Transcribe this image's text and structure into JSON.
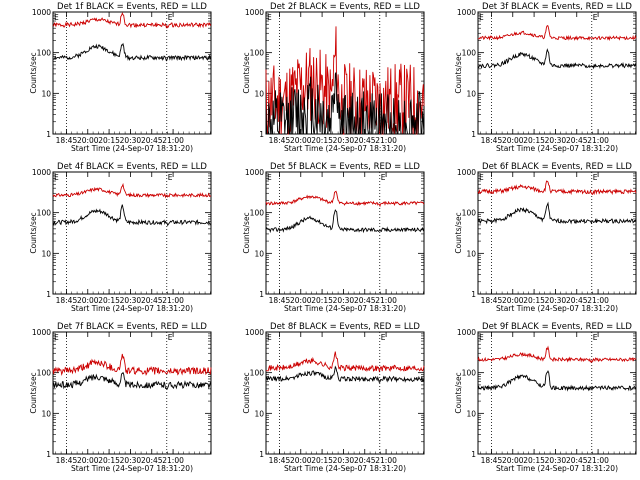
{
  "chart_data": [
    {
      "type": "line",
      "title": "Det 1f BLACK = Events, RED = LLD",
      "ylabel": "Counts/sec",
      "xlabel": "Start Time (24-Sep-07 18:31:20)",
      "ylim": [
        1,
        1000
      ],
      "y_scale": "log",
      "x_ticks": [
        "18:45",
        "20:00",
        "20:15",
        "20:30",
        "20:45",
        "21:00"
      ],
      "y_ticks": [
        "1",
        "10",
        "100",
        "1000"
      ],
      "markers": {
        "E_left": "E",
        "E_right": "E"
      },
      "series": [
        {
          "color": "#cc0000",
          "base": 480,
          "bump": 1.35,
          "spike": 2.0,
          "noise": 0.05
        },
        {
          "color": "#000000",
          "base": 75,
          "bump": 1.9,
          "spike": 2.1,
          "noise": 0.05
        }
      ]
    },
    {
      "type": "line",
      "title": "Det 2f BLACK = Events, RED = LLD",
      "ylabel": "Counts/sec",
      "xlabel": "Start Time (24-Sep-07 18:31:20)",
      "ylim": [
        1,
        1000
      ],
      "y_scale": "log",
      "x_ticks": [
        "18:45",
        "20:00",
        "20:15",
        "20:30",
        "20:45",
        "21:00"
      ],
      "y_ticks": [
        "1",
        "10",
        "100",
        "1000"
      ],
      "markers": {
        "E_left": "E",
        "E_right": ""
      },
      "series": [
        {
          "color": "#cc0000",
          "base": 6,
          "bump": 3.0,
          "spike": 10.0,
          "noise": 1.0
        },
        {
          "color": "#000000",
          "base": 1.5,
          "bump": 3.0,
          "spike": 20.0,
          "noise": 0.9
        }
      ]
    },
    {
      "type": "line",
      "title": "Det 3f BLACK = Events, RED = LLD",
      "ylabel": "Counts/sec",
      "xlabel": "Start Time (24-Sep-07 18:31:20)",
      "ylim": [
        1,
        1000
      ],
      "y_scale": "log",
      "x_ticks": [
        "18:45",
        "20:00",
        "20:15",
        "20:30",
        "20:45",
        "21:00"
      ],
      "y_ticks": [
        "1",
        "10",
        "100",
        "1000"
      ],
      "markers": {
        "E_left": "E",
        "E_right": "E"
      },
      "series": [
        {
          "color": "#cc0000",
          "base": 230,
          "bump": 1.35,
          "spike": 1.9,
          "noise": 0.04
        },
        {
          "color": "#000000",
          "base": 48,
          "bump": 1.9,
          "spike": 2.3,
          "noise": 0.05
        }
      ]
    },
    {
      "type": "line",
      "title": "Det 4f BLACK = Events, RED = LLD",
      "ylabel": "Counts/sec",
      "xlabel": "Start Time (24-Sep-07 18:31:20)",
      "ylim": [
        1,
        1000
      ],
      "y_scale": "log",
      "x_ticks": [
        "18:45",
        "20:00",
        "20:15",
        "20:30",
        "20:45",
        "21:00"
      ],
      "y_ticks": [
        "1",
        "10",
        "100",
        "1000"
      ],
      "markers": {
        "E_left": "E",
        "E_right": "E"
      },
      "series": [
        {
          "color": "#cc0000",
          "base": 270,
          "bump": 1.4,
          "spike": 1.8,
          "noise": 0.04
        },
        {
          "color": "#000000",
          "base": 58,
          "bump": 1.9,
          "spike": 2.4,
          "noise": 0.05
        }
      ]
    },
    {
      "type": "line",
      "title": "Det 5f BLACK = Events, RED = LLD",
      "ylabel": "Counts/sec",
      "xlabel": "Start Time (24-Sep-07 18:31:20)",
      "ylim": [
        1,
        1000
      ],
      "y_scale": "log",
      "x_ticks": [
        "18:45",
        "20:00",
        "20:15",
        "20:30",
        "20:45",
        "21:00"
      ],
      "y_ticks": [
        "1",
        "10",
        "100",
        "1000"
      ],
      "markers": {
        "E_left": "E",
        "E_right": "E"
      },
      "series": [
        {
          "color": "#cc0000",
          "base": 170,
          "bump": 1.45,
          "spike": 2.0,
          "noise": 0.04
        },
        {
          "color": "#000000",
          "base": 38,
          "bump": 1.9,
          "spike": 3.2,
          "noise": 0.05
        }
      ]
    },
    {
      "type": "line",
      "title": "Det 6f BLACK = Events, RED = LLD",
      "ylabel": "Counts/sec",
      "xlabel": "Start Time (24-Sep-07 18:31:20)",
      "ylim": [
        1,
        1000
      ],
      "y_scale": "log",
      "x_ticks": [
        "18:45",
        "20:00",
        "20:15",
        "20:30",
        "20:45",
        "21:00"
      ],
      "y_ticks": [
        "1",
        "10",
        "100",
        "1000"
      ],
      "markers": {
        "E_left": "E",
        "E_right": "E"
      },
      "series": [
        {
          "color": "#cc0000",
          "base": 330,
          "bump": 1.3,
          "spike": 1.8,
          "noise": 0.05
        },
        {
          "color": "#000000",
          "base": 62,
          "bump": 1.9,
          "spike": 2.5,
          "noise": 0.05
        }
      ]
    },
    {
      "type": "line",
      "title": "Det 7f BLACK = Events, RED = LLD",
      "ylabel": "Counts/sec",
      "xlabel": "Start Time (24-Sep-07 18:31:20)",
      "ylim": [
        1,
        1000
      ],
      "y_scale": "log",
      "x_ticks": [
        "18:45",
        "20:00",
        "20:15",
        "20:30",
        "20:45",
        "21:00"
      ],
      "y_ticks": [
        "1",
        "10",
        "100",
        "1000"
      ],
      "markers": {
        "E_left": "E",
        "E_right": "E"
      },
      "series": [
        {
          "color": "#cc0000",
          "base": 110,
          "bump": 1.6,
          "spike": 2.4,
          "noise": 0.09
        },
        {
          "color": "#000000",
          "base": 50,
          "bump": 1.6,
          "spike": 1.8,
          "noise": 0.08
        }
      ]
    },
    {
      "type": "line",
      "title": "Det 8f BLACK = Events, RED = LLD",
      "ylabel": "Counts/sec",
      "xlabel": "Start Time (24-Sep-07 18:31:20)",
      "ylim": [
        1,
        1000
      ],
      "y_scale": "log",
      "x_ticks": [
        "18:45",
        "20:00",
        "20:15",
        "20:30",
        "20:45",
        "21:00"
      ],
      "y_ticks": [
        "1",
        "10",
        "100",
        "1000"
      ],
      "markers": {
        "E_left": "E",
        "E_right": "E"
      },
      "series": [
        {
          "color": "#cc0000",
          "base": 130,
          "bump": 1.5,
          "spike": 2.2,
          "noise": 0.07
        },
        {
          "color": "#000000",
          "base": 70,
          "bump": 1.4,
          "spike": 1.8,
          "noise": 0.06
        }
      ]
    },
    {
      "type": "line",
      "title": "Det 9f BLACK = Events, RED = LLD",
      "ylabel": "Counts/sec",
      "xlabel": "Start Time (24-Sep-07 18:31:20)",
      "ylim": [
        1,
        1000
      ],
      "y_scale": "log",
      "x_ticks": [
        "18:45",
        "20:00",
        "20:15",
        "20:30",
        "20:45",
        "21:00"
      ],
      "y_ticks": [
        "1",
        "10",
        "100",
        "1000"
      ],
      "markers": {
        "E_left": "E",
        "E_right": "E"
      },
      "series": [
        {
          "color": "#cc0000",
          "base": 210,
          "bump": 1.35,
          "spike": 1.9,
          "noise": 0.04
        },
        {
          "color": "#000000",
          "base": 42,
          "bump": 1.9,
          "spike": 2.6,
          "noise": 0.05
        }
      ]
    }
  ]
}
